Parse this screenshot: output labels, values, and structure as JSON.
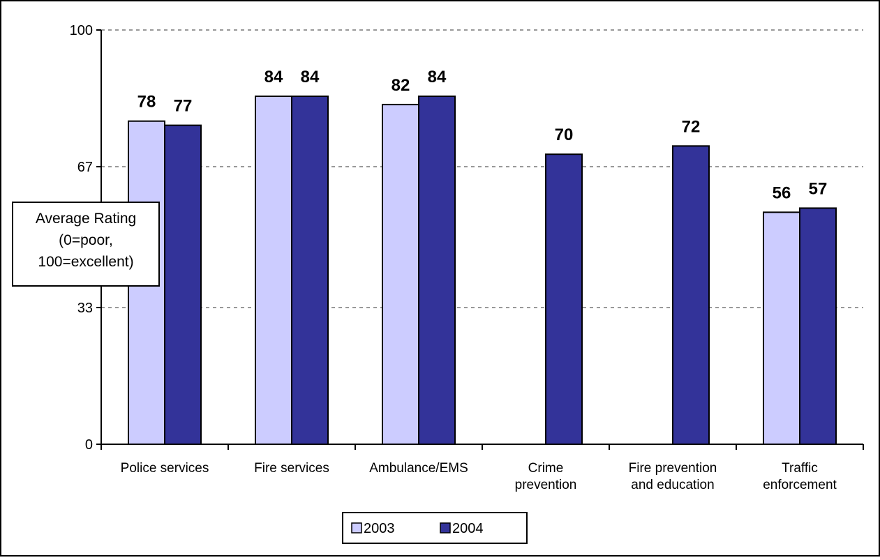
{
  "chart_data": {
    "type": "bar",
    "title": "",
    "xlabel": "",
    "ylabel": [
      "Average Rating",
      "(0=poor,",
      "100=excellent)"
    ],
    "ylim": [
      0,
      100
    ],
    "yticks": [
      "0",
      "33",
      "67",
      "100"
    ],
    "grid": "horizontal-dashed",
    "legend_position": "bottom",
    "categories": [
      [
        "Police services"
      ],
      [
        "Fire services"
      ],
      [
        "Ambulance/EMS"
      ],
      [
        "Crime",
        "prevention"
      ],
      [
        "Fire prevention",
        "and education"
      ],
      [
        "Traffic",
        "enforcement"
      ]
    ],
    "series": [
      {
        "name": "2003",
        "color": "#ccccff",
        "values": [
          78,
          84,
          82,
          null,
          null,
          56
        ]
      },
      {
        "name": "2004",
        "color": "#333399",
        "values": [
          77,
          84,
          84,
          70,
          72,
          57
        ]
      }
    ]
  }
}
